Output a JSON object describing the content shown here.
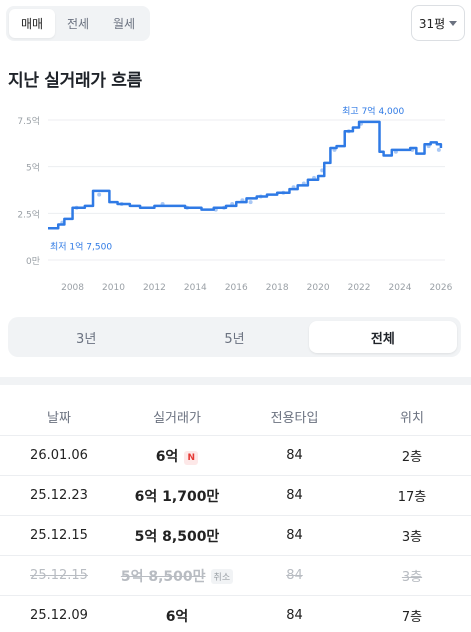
{
  "top_tabs": [
    {
      "label": "매매",
      "active": true
    },
    {
      "label": "전세",
      "active": false
    },
    {
      "label": "월세",
      "active": false
    }
  ],
  "area_select": {
    "value": "31평"
  },
  "section_title": "지난 실거래가 흐름",
  "chart_data": {
    "type": "line",
    "x_ticks": [
      "2008",
      "2010",
      "2012",
      "2014",
      "2016",
      "2018",
      "2020",
      "2022",
      "2024",
      "2026"
    ],
    "y_ticks": [
      "7.5억",
      "5억",
      "2.5억",
      "0만"
    ],
    "ylim": [
      0,
      7.5
    ],
    "xlim": [
      2006.8,
      2026.2
    ],
    "y_unit": "억",
    "series": [
      {
        "color": "#2f7ae5",
        "x": [
          2006.8,
          2007.3,
          2007.6,
          2008.0,
          2008.6,
          2009.0,
          2009.5,
          2009.8,
          2010.2,
          2010.8,
          2011.3,
          2012.0,
          2012.8,
          2013.5,
          2013.9,
          2014.3,
          2014.9,
          2015.5,
          2016.0,
          2016.5,
          2017.0,
          2017.5,
          2018.0,
          2018.6,
          2019.0,
          2019.5,
          2020.0,
          2020.3,
          2020.6,
          2020.9,
          2021.3,
          2021.7,
          2022.0,
          2022.3,
          2022.6,
          2023.0,
          2023.2,
          2023.6,
          2024.0,
          2024.5,
          2024.8,
          2025.2,
          2025.5,
          2025.8,
          2026.0
        ],
        "y": [
          1.7,
          1.9,
          2.2,
          2.8,
          2.9,
          3.7,
          3.7,
          3.1,
          3.0,
          2.9,
          2.8,
          2.9,
          2.9,
          2.8,
          2.8,
          2.7,
          2.8,
          2.9,
          3.1,
          3.3,
          3.4,
          3.5,
          3.6,
          3.8,
          4.0,
          4.3,
          4.5,
          5.2,
          6.0,
          6.1,
          6.9,
          7.1,
          7.4,
          7.4,
          7.4,
          5.8,
          5.6,
          5.9,
          5.9,
          6.0,
          5.7,
          6.2,
          6.3,
          6.2,
          6.0
        ]
      }
    ],
    "annotations": [
      {
        "label": "최고 7억 4,000",
        "x": 2022.3,
        "y": 7.4,
        "position": "above"
      },
      {
        "label": "최저 1억 7,500",
        "x": 2006.8,
        "y": 1.75,
        "position": "below"
      }
    ],
    "grid": true,
    "scatter_points": [
      [
        2007.5,
        2.0
      ],
      [
        2008.2,
        2.8
      ],
      [
        2009.3,
        3.5
      ],
      [
        2010.4,
        3.0
      ],
      [
        2012.4,
        3.0
      ],
      [
        2013.6,
        2.8
      ],
      [
        2015.0,
        2.7
      ],
      [
        2015.4,
        2.8
      ],
      [
        2015.8,
        3.0
      ],
      [
        2016.3,
        3.2
      ],
      [
        2016.7,
        3.1
      ],
      [
        2017.2,
        3.4
      ],
      [
        2018.3,
        3.6
      ],
      [
        2018.8,
        3.9
      ],
      [
        2019.3,
        4.1
      ],
      [
        2019.8,
        4.4
      ],
      [
        2020.2,
        4.8
      ],
      [
        2020.8,
        5.9
      ],
      [
        2021.5,
        6.9
      ],
      [
        2022.1,
        7.3
      ],
      [
        2023.8,
        5.8
      ],
      [
        2024.6,
        5.9
      ],
      [
        2025.4,
        6.1
      ],
      [
        2025.9,
        5.9
      ]
    ]
  },
  "range_tabs": [
    {
      "label": "3년",
      "active": false
    },
    {
      "label": "5년",
      "active": false
    },
    {
      "label": "전체",
      "active": true
    }
  ],
  "table": {
    "headers": [
      "날짜",
      "실거래가",
      "전용타입",
      "위치"
    ],
    "rows": [
      {
        "date": "26.01.06",
        "price": "6억",
        "badge": "N",
        "type": "84",
        "floor": "2층",
        "cancelled": false
      },
      {
        "date": "25.12.23",
        "price": "6억 1,700만",
        "badge": "",
        "type": "84",
        "floor": "17층",
        "cancelled": false
      },
      {
        "date": "25.12.15",
        "price": "5억 8,500만",
        "badge": "",
        "type": "84",
        "floor": "3층",
        "cancelled": false
      },
      {
        "date": "25.12.15",
        "price": "5억 8,500만",
        "badge": "취소",
        "type": "84",
        "floor": "3층",
        "cancelled": true
      },
      {
        "date": "25.12.09",
        "price": "6억",
        "badge": "",
        "type": "84",
        "floor": "7층",
        "cancelled": false
      }
    ]
  }
}
